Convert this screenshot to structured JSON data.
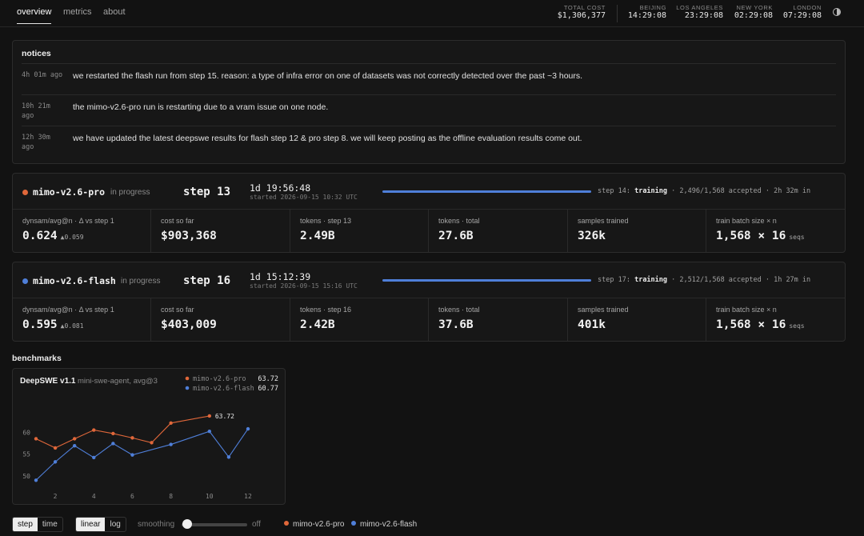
{
  "nav": {
    "tabs": [
      {
        "label": "overview"
      },
      {
        "label": "metrics"
      },
      {
        "label": "about"
      }
    ]
  },
  "header": {
    "total_cost": {
      "label": "TOTAL COST",
      "value": "$1,306,377"
    },
    "clocks": [
      {
        "city": "BEIJING",
        "time": "14:29:08"
      },
      {
        "city": "LOS ANGELES",
        "time": "23:29:08"
      },
      {
        "city": "NEW YORK",
        "time": "02:29:08"
      },
      {
        "city": "LONDON",
        "time": "07:29:08"
      }
    ],
    "theme_icon": "half-circle-icon"
  },
  "notices": {
    "title": "notices",
    "items": [
      {
        "ago": "4h 01m ago",
        "text": "we restarted the flash run from step 15. reason: a type of infra error on one of datasets was not correctly detected over the past ~3 hours."
      },
      {
        "ago": "10h 21m ago",
        "text": "the mimo-v2.6-pro run is restarting due to a vram issue on one node."
      },
      {
        "ago": "12h 30m ago",
        "text": "we have updated the latest deepswe results for flash step 12 & pro step 8. we will keep posting as the offline evaluation results come out."
      }
    ]
  },
  "runs": [
    {
      "name": "mimo-v2.6-pro",
      "status": "in progress",
      "step": "step 13",
      "elapsed": "1d 19:56:48",
      "started": "started 2026-09-15 10:32 UTC",
      "progress": 1.0,
      "color": "#e0673a",
      "next_step": "step 14:",
      "phase": "training",
      "detail": "· 2,496/1,568 accepted · 2h 32m in",
      "metrics": [
        {
          "label": "dynsam/avg@n · Δ vs step 1",
          "value": "0.624",
          "sub": "▲0.059"
        },
        {
          "label": "cost so far",
          "value": "$903,368",
          "sub": ""
        },
        {
          "label": "tokens · step 13",
          "value": "2.49B",
          "sub": ""
        },
        {
          "label": "tokens · total",
          "value": "27.6B",
          "sub": ""
        },
        {
          "label": "samples trained",
          "value": "326k",
          "sub": ""
        },
        {
          "label": "train batch size × n",
          "value": "1,568 × 16",
          "sub": "seqs"
        }
      ]
    },
    {
      "name": "mimo-v2.6-flash",
      "status": "in progress",
      "step": "step 16",
      "elapsed": "1d 15:12:39",
      "started": "started 2026-09-15 15:16 UTC",
      "progress": 1.0,
      "color": "#4f7fd9",
      "next_step": "step 17:",
      "phase": "training",
      "detail": "· 2,512/1,568 accepted · 1h 27m in",
      "metrics": [
        {
          "label": "dynsam/avg@n · Δ vs step 1",
          "value": "0.595",
          "sub": "▲0.081"
        },
        {
          "label": "cost so far",
          "value": "$403,009",
          "sub": ""
        },
        {
          "label": "tokens · step 16",
          "value": "2.42B",
          "sub": ""
        },
        {
          "label": "tokens · total",
          "value": "37.6B",
          "sub": ""
        },
        {
          "label": "samples trained",
          "value": "401k",
          "sub": ""
        },
        {
          "label": "train batch size × n",
          "value": "1,568 × 16",
          "sub": "seqs"
        }
      ]
    }
  ],
  "benchmarks": {
    "title": "benchmarks"
  },
  "chart_data": {
    "type": "line",
    "title": "DeepSWE v1.1",
    "subtitle": "mini-swe-agent, avg@3",
    "xlabel": "",
    "ylabel": "",
    "xlim": [
      1,
      12
    ],
    "ylim": [
      48.5,
      65
    ],
    "xticks": [
      2,
      4,
      6,
      8,
      10,
      12
    ],
    "yticks": [
      50,
      55,
      60
    ],
    "grid": false,
    "legend": "top-right",
    "series": [
      {
        "name": "mimo-v2.6-pro",
        "color": "#e0673a",
        "latest": "63.72",
        "x": [
          1,
          2,
          3,
          4,
          5,
          6,
          7,
          8,
          10
        ],
        "y": [
          58.5,
          56.4,
          58.5,
          60.5,
          59.7,
          58.7,
          57.6,
          62.1,
          63.72
        ]
      },
      {
        "name": "mimo-v2.6-flash",
        "color": "#4f7fd9",
        "latest": "60.77",
        "x": [
          1,
          2,
          3,
          4,
          5,
          6,
          8,
          10,
          11,
          12
        ],
        "y": [
          49.0,
          53.2,
          56.9,
          54.2,
          57.4,
          54.8,
          57.2,
          60.2,
          54.3,
          60.77
        ]
      }
    ],
    "annotation": "63.72"
  },
  "controls": {
    "xaxis": [
      {
        "label": "step",
        "on": true
      },
      {
        "label": "time",
        "on": false
      }
    ],
    "scale": [
      {
        "label": "linear",
        "on": true
      },
      {
        "label": "log",
        "on": false
      }
    ],
    "smoothing_label": "smoothing",
    "smoothing_value": "off",
    "legend": [
      {
        "name": "mimo-v2.6-pro",
        "color": "#e0673a"
      },
      {
        "name": "mimo-v2.6-flash",
        "color": "#4f7fd9"
      }
    ]
  }
}
